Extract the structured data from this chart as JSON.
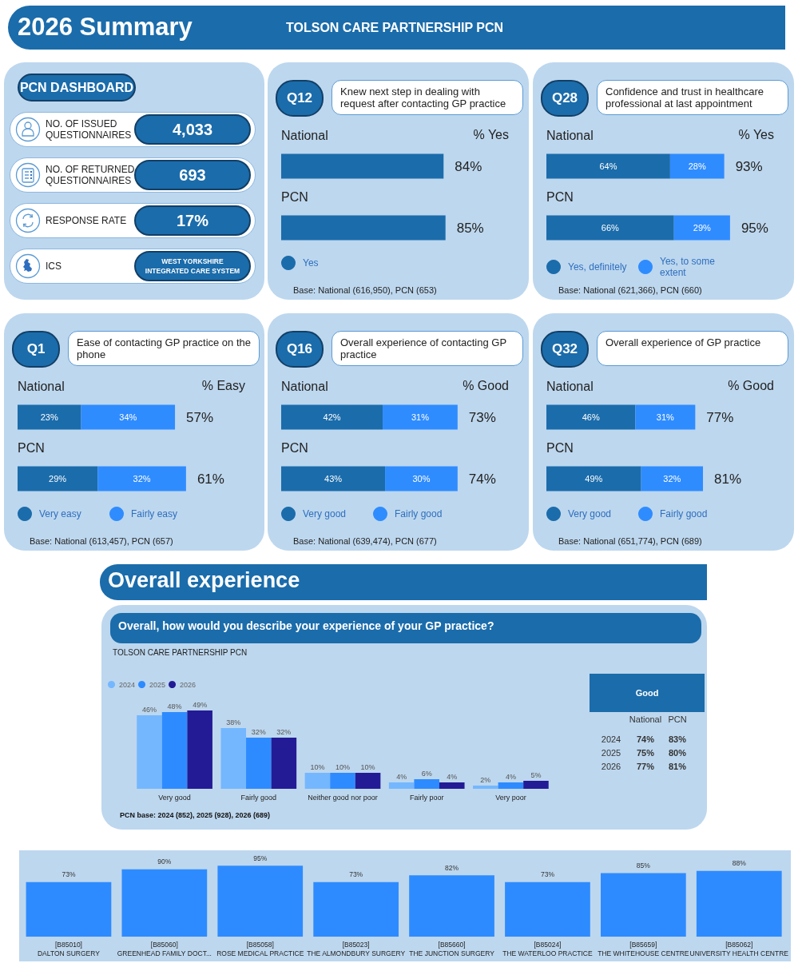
{
  "chart_data": [
    {
      "type": "other",
      "title": "2026 Summary",
      "subtitle": "TOLSON CARE PARTNERSHIP PCN"
    },
    {
      "type": "other",
      "title": "PCN DASHBOARD",
      "annotations": [
        "NO. OF ISSUED QUESTIONNAIRES",
        "4,033",
        "NO. OF RETURNED QUESTIONNAIRES",
        "693",
        "RESPONSE RATE",
        "17%",
        "ICS",
        "WEST YORKSHIRE INTEGRATED CARE SYSTEM"
      ]
    },
    {
      "type": "bar",
      "orientation": "horizontal",
      "title": "Q12",
      "subtitle": "Knew next step in dealing with request after contacting GP practice",
      "categories": [
        "National",
        "PCN"
      ],
      "series": [
        {
          "name": "Yes",
          "color": "#1b6cab",
          "values": [
            84,
            85
          ],
          "value_labels": [
            "84%",
            "85%"
          ]
        }
      ],
      "tick_labels": "y",
      "legend": "bottom left",
      "annotations": [
        "% Yes",
        "Base: National (616,950), PCN (653)"
      ]
    },
    {
      "type": "bar",
      "orientation": "horizontal",
      "stacked": true,
      "title": "Q28",
      "subtitle": "Confidence and trust in healthcare professional at last appointment",
      "categories": [
        "National",
        "PCN"
      ],
      "series": [
        {
          "name": "Yes, definitely",
          "color": "#1b6cab",
          "values": [
            64,
            66
          ],
          "value_labels": [
            "64%",
            "66%"
          ]
        },
        {
          "name": "Yes, to some extent",
          "color": "#2f8cff",
          "values": [
            28,
            29
          ],
          "value_labels": [
            "28%",
            "29%"
          ]
        }
      ],
      "totals": [
        "93%",
        "95%"
      ],
      "tick_labels": "y",
      "legend": "bottom left",
      "annotations": [
        "% Yes",
        "Base: National (621,366), PCN (660)"
      ]
    },
    {
      "type": "bar",
      "orientation": "horizontal",
      "stacked": true,
      "title": "Q1",
      "subtitle": "Ease of contacting GP practice on the phone",
      "categories": [
        "National",
        "PCN"
      ],
      "series": [
        {
          "name": "Very easy",
          "color": "#1b6cab",
          "values": [
            23,
            29
          ],
          "value_labels": [
            "23%",
            "29%"
          ]
        },
        {
          "name": "Fairly easy",
          "color": "#2f8cff",
          "values": [
            34,
            32
          ],
          "value_labels": [
            "34%",
            "32%"
          ]
        }
      ],
      "totals": [
        "57%",
        "61%"
      ],
      "tick_labels": "y",
      "legend": "bottom left",
      "annotations": [
        "% Easy",
        "Base: National (613,457), PCN (657)"
      ]
    },
    {
      "type": "bar",
      "orientation": "horizontal",
      "stacked": true,
      "title": "Q16",
      "subtitle": "Overall experience of contacting GP practice",
      "categories": [
        "National",
        "PCN"
      ],
      "series": [
        {
          "name": "Very good",
          "color": "#1b6cab",
          "values": [
            42,
            43
          ],
          "value_labels": [
            "42%",
            "43%"
          ]
        },
        {
          "name": "Fairly good",
          "color": "#2f8cff",
          "values": [
            31,
            30
          ],
          "value_labels": [
            "31%",
            "30%"
          ]
        }
      ],
      "totals": [
        "73%",
        "74%"
      ],
      "tick_labels": "y",
      "legend": "bottom left",
      "annotations": [
        "% Good",
        "Base: National (639,474), PCN (677)"
      ]
    },
    {
      "type": "bar",
      "orientation": "horizontal",
      "stacked": true,
      "title": "Q32",
      "subtitle": "Overall experience of GP practice",
      "categories": [
        "National",
        "PCN"
      ],
      "series": [
        {
          "name": "Very good",
          "color": "#1b6cab",
          "values": [
            46,
            49
          ],
          "value_labels": [
            "46%",
            "49%"
          ]
        },
        {
          "name": "Fairly good",
          "color": "#2f8cff",
          "values": [
            31,
            32
          ],
          "value_labels": [
            "31%",
            "32%"
          ]
        }
      ],
      "totals": [
        "77%",
        "81%"
      ],
      "tick_labels": "y",
      "legend": "bottom left",
      "annotations": [
        "% Good",
        "Base: National (651,774), PCN (689)"
      ]
    },
    {
      "type": "bar",
      "title": "Overall experience",
      "subtitle": "Overall, how would you describe your experience of your GP practice?",
      "categories": [
        "Very good",
        "Fairly good",
        "Neither good nor poor",
        "Fairly poor",
        "Very poor"
      ],
      "series": [
        {
          "name": "2024",
          "color": "#74b7ff",
          "values": [
            46,
            38,
            10,
            4,
            2
          ],
          "value_labels": [
            "46%",
            "38%",
            "10%",
            "4%",
            "2%"
          ]
        },
        {
          "name": "2025",
          "color": "#2e8bff",
          "values": [
            48,
            32,
            10,
            6,
            4
          ],
          "value_labels": [
            "48%",
            "32%",
            "10%",
            "6%",
            "4%"
          ]
        },
        {
          "name": "2026",
          "color": "#231b96",
          "values": [
            49,
            32,
            10,
            4,
            5
          ],
          "value_labels": [
            "49%",
            "32%",
            "10%",
            "4%",
            "5%"
          ]
        }
      ],
      "tick_labels": "x",
      "legend": "top left",
      "annotations": [
        "TOLSON CARE PARTNERSHIP PCN",
        "PCN base: 2024 (852), 2025 (928), 2026 (689)"
      ]
    },
    {
      "type": "other",
      "title": "Good",
      "annotations": [
        "National",
        "PCN",
        "2024",
        "74%",
        "83%",
        "2025",
        "75%",
        "80%",
        "2026",
        "77%",
        "81%"
      ]
    },
    {
      "type": "bar",
      "categories": [
        "[B85010]\nDALTON SURGERY",
        "[B85060]\nGREENHEAD FAMILY DOCT...",
        "[B85058]\nROSE MEDICAL PRACTICE",
        "[B85023]\nTHE ALMONDBURY SURGERY",
        "[B85660]\nTHE JUNCTION SURGERY",
        "[B85024]\nTHE WATERLOO PRACTICE",
        "[B85659]\nTHE WHITEHOUSE CENTRE",
        "[B85062]\nUNIVERSITY HEALTH CENTRE"
      ],
      "series": [
        {
          "color": "#2e8bff",
          "values": [
            73,
            90,
            95,
            73,
            82,
            73,
            85,
            88
          ],
          "value_labels": [
            "73%",
            "90%",
            "95%",
            "73%",
            "82%",
            "73%",
            "85%",
            "88%"
          ]
        }
      ],
      "tick_labels": "x"
    }
  ]
}
